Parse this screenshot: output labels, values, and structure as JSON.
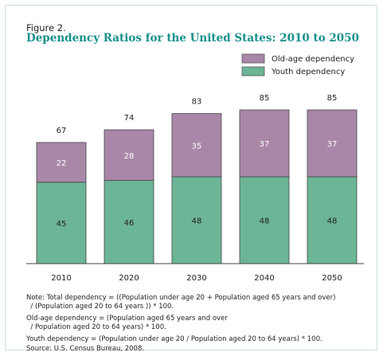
{
  "figure_label": "Figure 2.",
  "title": "Dependency Ratios for the United States: 2010 to 2050",
  "legend": [
    {
      "label": "Old-age dependency",
      "color": "#a987a8"
    },
    {
      "label": "Youth dependency",
      "color": "#6cb597"
    }
  ],
  "notes": {
    "total": "Note: Total dependency = ((Population under age 20 + Population aged 65 years and over)\n  / (Population aged 20 to 64 years )) * 100.",
    "old_age": "Old-age dependency = (Population aged 65 years and over\n  / Population aged 20 to 64 years) * 100.",
    "youth": "Youth dependency = (Population under age 20 / Population aged 20 to 64 years) * 100.",
    "source": "Source: U.S. Census Bureau, 2008."
  },
  "chart_data": {
    "type": "bar",
    "stacked": true,
    "categories": [
      "2010",
      "2020",
      "2030",
      "2040",
      "2050"
    ],
    "series": [
      {
        "name": "Youth dependency",
        "values": [
          45,
          46,
          48,
          48,
          48
        ],
        "color": "#6cb597"
      },
      {
        "name": "Old-age dependency",
        "values": [
          22,
          28,
          35,
          37,
          37
        ],
        "color": "#a987a8"
      }
    ],
    "totals": [
      67,
      74,
      83,
      85,
      85
    ],
    "title": "Dependency Ratios for the United States: 2010 to 2050",
    "xlabel": "",
    "ylabel": "",
    "ylim": [
      0,
      85
    ],
    "grid": false,
    "legend_position": "top-right"
  }
}
